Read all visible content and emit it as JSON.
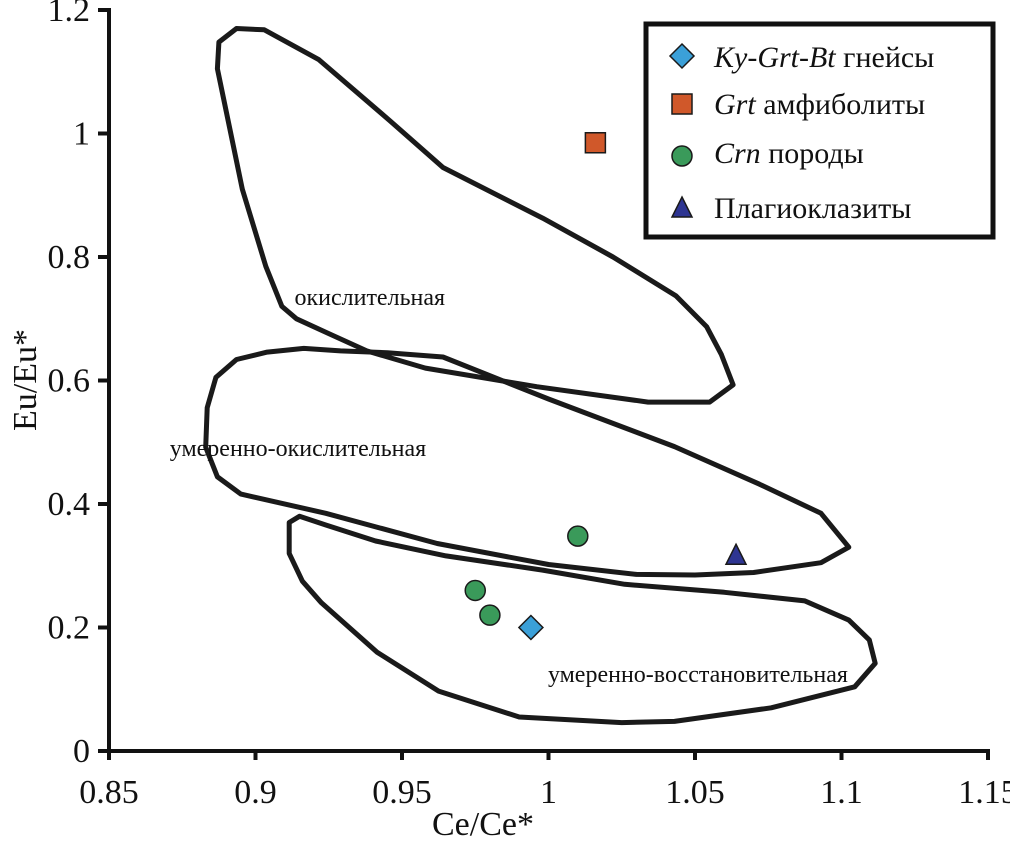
{
  "chart_data": {
    "type": "scatter",
    "title": "",
    "xlabel": "Ce/Ce*",
    "ylabel": "Eu/Eu*",
    "xlim": [
      0.85,
      1.15
    ],
    "ylim": [
      0,
      1.2
    ],
    "grid": false,
    "x_ticks": [
      0.85,
      0.9,
      0.95,
      1.0,
      1.05,
      1.1,
      1.15
    ],
    "x_tick_labels": [
      "0.85",
      "0.9",
      "0.95",
      "1",
      "1.05",
      "1.1",
      "1.15"
    ],
    "y_ticks": [
      0,
      0.2,
      0.4,
      0.6,
      0.8,
      1.0,
      1.2
    ],
    "y_tick_labels": [
      "0",
      "0.2",
      "0.4",
      "0.6",
      "0.8",
      "1",
      "1.2"
    ],
    "legend_position": "top-right",
    "series": [
      {
        "name": "Ky-Grt-Bt гнейсы",
        "name_italic": "Ky-Grt-Bt",
        "name_rest": " гнейсы",
        "marker": "diamond",
        "color": "#3ba0d8",
        "points": [
          [
            0.994,
            0.2
          ]
        ]
      },
      {
        "name": "Grt амфиболиты",
        "name_italic": "Grt",
        "name_rest": " амфиболиты",
        "marker": "square",
        "color": "#d0582a",
        "points": [
          [
            1.016,
            0.985
          ]
        ]
      },
      {
        "name": "Crn породы",
        "name_italic": "Crn",
        "name_rest": " породы",
        "marker": "circle",
        "color": "#3a9a5a",
        "points": [
          [
            0.975,
            0.26
          ],
          [
            0.98,
            0.22
          ],
          [
            1.01,
            0.348
          ]
        ]
      },
      {
        "name": "Плагиоклазиты",
        "name_italic": "",
        "name_rest": "Плагиоклазиты",
        "marker": "triangle",
        "color": "#2e3592",
        "points": [
          [
            1.064,
            0.317
          ]
        ]
      }
    ],
    "regions": [
      {
        "label": "окислительная",
        "label_at": [
          0.939,
          0.735
        ],
        "polygon": [
          [
            0.8935,
            1.17
          ],
          [
            0.903,
            1.168
          ],
          [
            0.9215,
            1.12
          ],
          [
            0.946,
            1.02
          ],
          [
            0.964,
            0.945
          ],
          [
            0.998,
            0.863
          ],
          [
            1.022,
            0.8
          ],
          [
            1.0435,
            0.737
          ],
          [
            1.054,
            0.687
          ],
          [
            1.059,
            0.642
          ],
          [
            1.063,
            0.593
          ],
          [
            1.055,
            0.565
          ],
          [
            1.034,
            0.565
          ],
          [
            0.996,
            0.59
          ],
          [
            0.958,
            0.62
          ],
          [
            0.938,
            0.648
          ],
          [
            0.925,
            0.676
          ],
          [
            0.914,
            0.7
          ],
          [
            0.909,
            0.72
          ],
          [
            0.9035,
            0.785
          ],
          [
            0.8955,
            0.91
          ],
          [
            0.887,
            1.105
          ],
          [
            0.8875,
            1.148
          ]
        ]
      },
      {
        "label": "умеренно-окислительная",
        "label_at": [
          0.9145,
          0.491
        ],
        "polygon": [
          [
            0.9165,
            0.652
          ],
          [
            0.904,
            0.646
          ],
          [
            0.8935,
            0.634
          ],
          [
            0.8865,
            0.605
          ],
          [
            0.8835,
            0.556
          ],
          [
            0.883,
            0.492
          ],
          [
            0.887,
            0.444
          ],
          [
            0.895,
            0.416
          ],
          [
            0.924,
            0.385
          ],
          [
            0.962,
            0.336
          ],
          [
            1.0,
            0.302
          ],
          [
            1.03,
            0.286
          ],
          [
            1.05,
            0.285
          ],
          [
            1.07,
            0.289
          ],
          [
            1.093,
            0.305
          ],
          [
            1.1025,
            0.33
          ],
          [
            1.093,
            0.385
          ],
          [
            1.072,
            0.432
          ],
          [
            1.043,
            0.493
          ],
          [
            1.0,
            0.57
          ],
          [
            0.964,
            0.638
          ],
          [
            0.945,
            0.645
          ],
          [
            0.929,
            0.648
          ]
        ]
      },
      {
        "label": "умеренно-восстановительная",
        "label_at": [
          1.051,
          0.125
        ],
        "polygon": [
          [
            0.915,
            0.38
          ],
          [
            0.9115,
            0.37
          ],
          [
            0.9115,
            0.32
          ],
          [
            0.916,
            0.275
          ],
          [
            0.9225,
            0.24
          ],
          [
            0.9415,
            0.16
          ],
          [
            0.9625,
            0.097
          ],
          [
            0.99,
            0.055
          ],
          [
            1.025,
            0.046
          ],
          [
            1.043,
            0.048
          ],
          [
            1.076,
            0.07
          ],
          [
            1.1045,
            0.104
          ],
          [
            1.1115,
            0.142
          ],
          [
            1.1095,
            0.18
          ],
          [
            1.1025,
            0.212
          ],
          [
            1.0875,
            0.243
          ],
          [
            1.06,
            0.257
          ],
          [
            1.026,
            0.27
          ],
          [
            0.998,
            0.293
          ],
          [
            0.965,
            0.316
          ],
          [
            0.941,
            0.34
          ],
          [
            0.924,
            0.366
          ]
        ]
      }
    ]
  },
  "stray_marks": [
    "✶"
  ]
}
